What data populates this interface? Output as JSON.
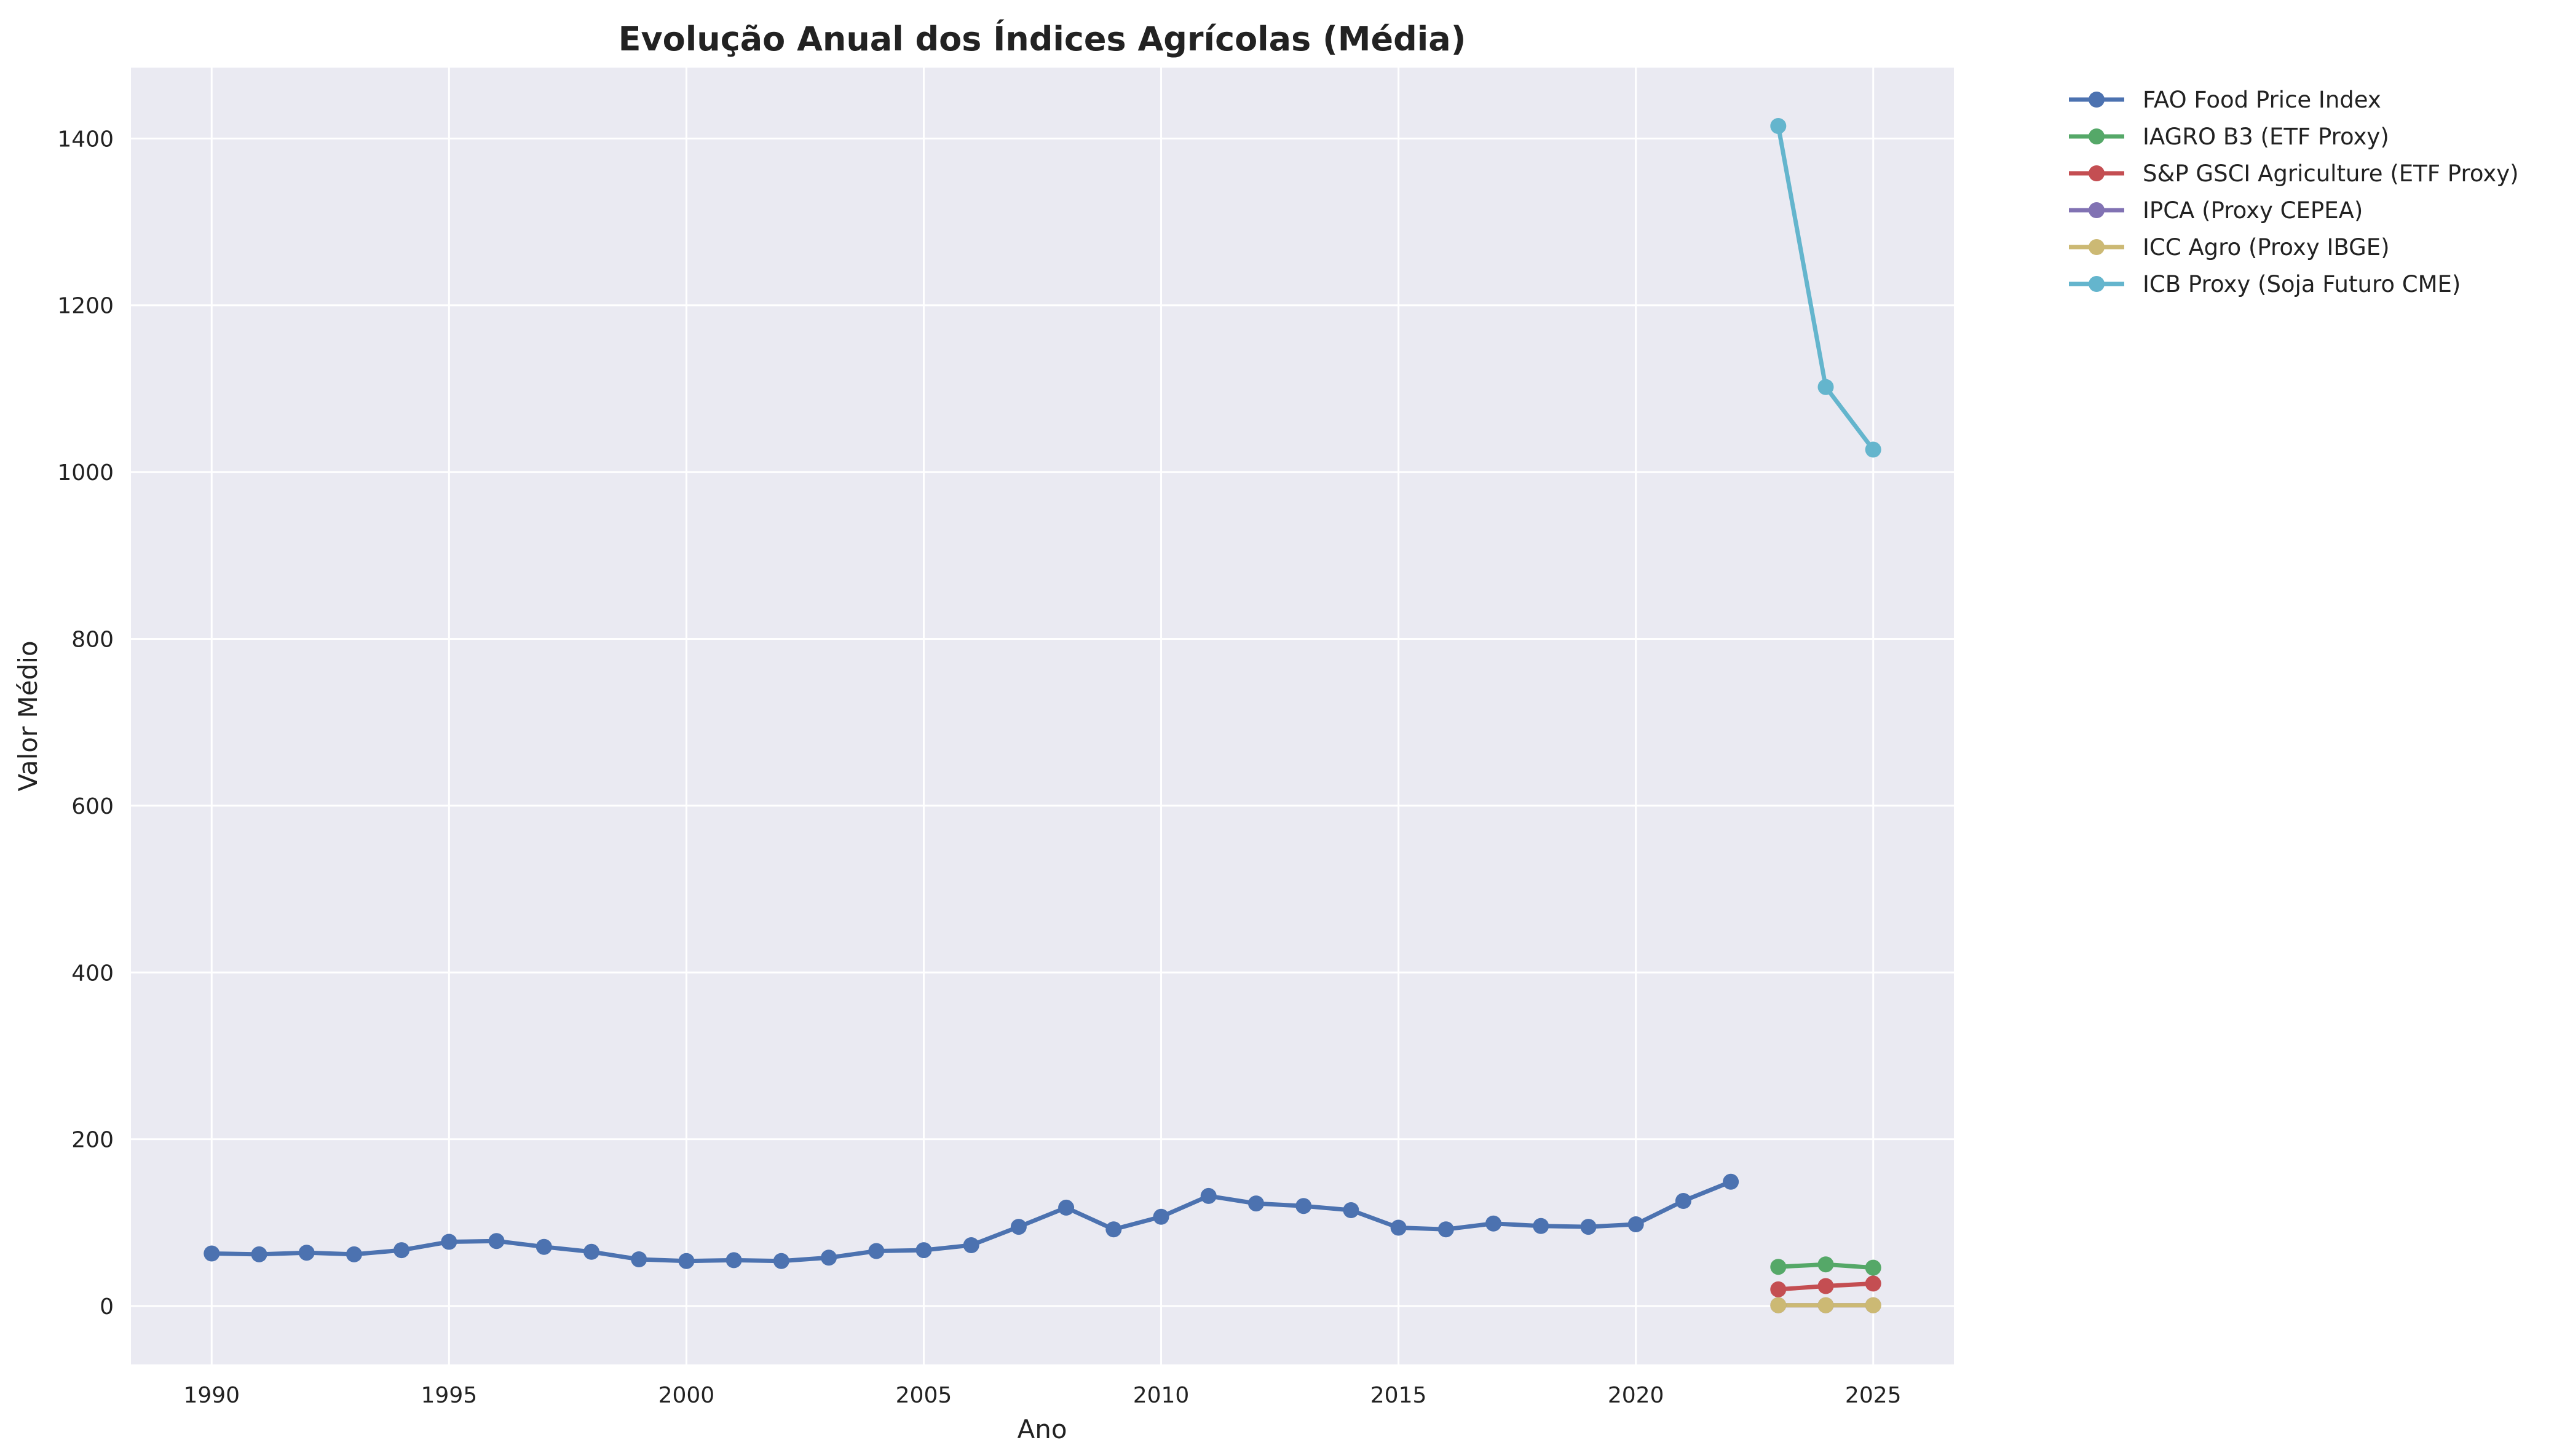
{
  "chart_data": {
    "type": "line",
    "title": "Evolução Anual dos Índices Agrícolas (Média)",
    "xlabel": "Ano",
    "ylabel": "Valor Médio",
    "xlim": [
      1988.3,
      2026.7
    ],
    "ylim": [
      -70,
      1485
    ],
    "xticks": [
      1990,
      1995,
      2000,
      2005,
      2010,
      2015,
      2020,
      2025
    ],
    "yticks": [
      0,
      200,
      400,
      600,
      800,
      1000,
      1200,
      1400
    ],
    "grid": true,
    "legend_placement": "outside-top-right",
    "series": [
      {
        "name": "FAO Food Price Index",
        "color": "#4c72b0",
        "points": [
          [
            1990,
            63
          ],
          [
            1991,
            62
          ],
          [
            1992,
            64
          ],
          [
            1993,
            62
          ],
          [
            1994,
            67
          ],
          [
            1995,
            77
          ],
          [
            1996,
            78
          ],
          [
            1997,
            71
          ],
          [
            1998,
            65
          ],
          [
            1999,
            56
          ],
          [
            2000,
            54
          ],
          [
            2001,
            55
          ],
          [
            2002,
            54
          ],
          [
            2003,
            58
          ],
          [
            2004,
            66
          ],
          [
            2005,
            67
          ],
          [
            2006,
            73
          ],
          [
            2007,
            95
          ],
          [
            2008,
            118
          ],
          [
            2009,
            92
          ],
          [
            2010,
            107
          ],
          [
            2011,
            132
          ],
          [
            2012,
            123
          ],
          [
            2013,
            120
          ],
          [
            2014,
            115
          ],
          [
            2015,
            94
          ],
          [
            2016,
            92
          ],
          [
            2017,
            99
          ],
          [
            2018,
            96
          ],
          [
            2019,
            95
          ],
          [
            2020,
            98
          ],
          [
            2021,
            126
          ],
          [
            2022,
            149
          ]
        ]
      },
      {
        "name": "IAGRO B3 (ETF Proxy)",
        "color": "#55a868",
        "points": [
          [
            2023,
            47
          ],
          [
            2024,
            50
          ],
          [
            2025,
            46
          ]
        ]
      },
      {
        "name": "S&P GSCI Agriculture (ETF Proxy)",
        "color": "#c44e52",
        "points": [
          [
            2023,
            20
          ],
          [
            2024,
            24
          ],
          [
            2025,
            27
          ]
        ]
      },
      {
        "name": "IPCA (Proxy CEPEA)",
        "color": "#8172b3",
        "points": [
          [
            2023,
            1
          ],
          [
            2024,
            1
          ],
          [
            2025,
            1
          ]
        ]
      },
      {
        "name": "ICC Agro (Proxy IBGE)",
        "color": "#ccb974",
        "points": [
          [
            2023,
            1
          ],
          [
            2024,
            1
          ],
          [
            2025,
            1
          ]
        ]
      },
      {
        "name": "ICB Proxy (Soja Futuro CME)",
        "color": "#64b5cd",
        "points": [
          [
            2023,
            1415
          ],
          [
            2024,
            1102
          ],
          [
            2025,
            1027
          ]
        ]
      }
    ]
  }
}
